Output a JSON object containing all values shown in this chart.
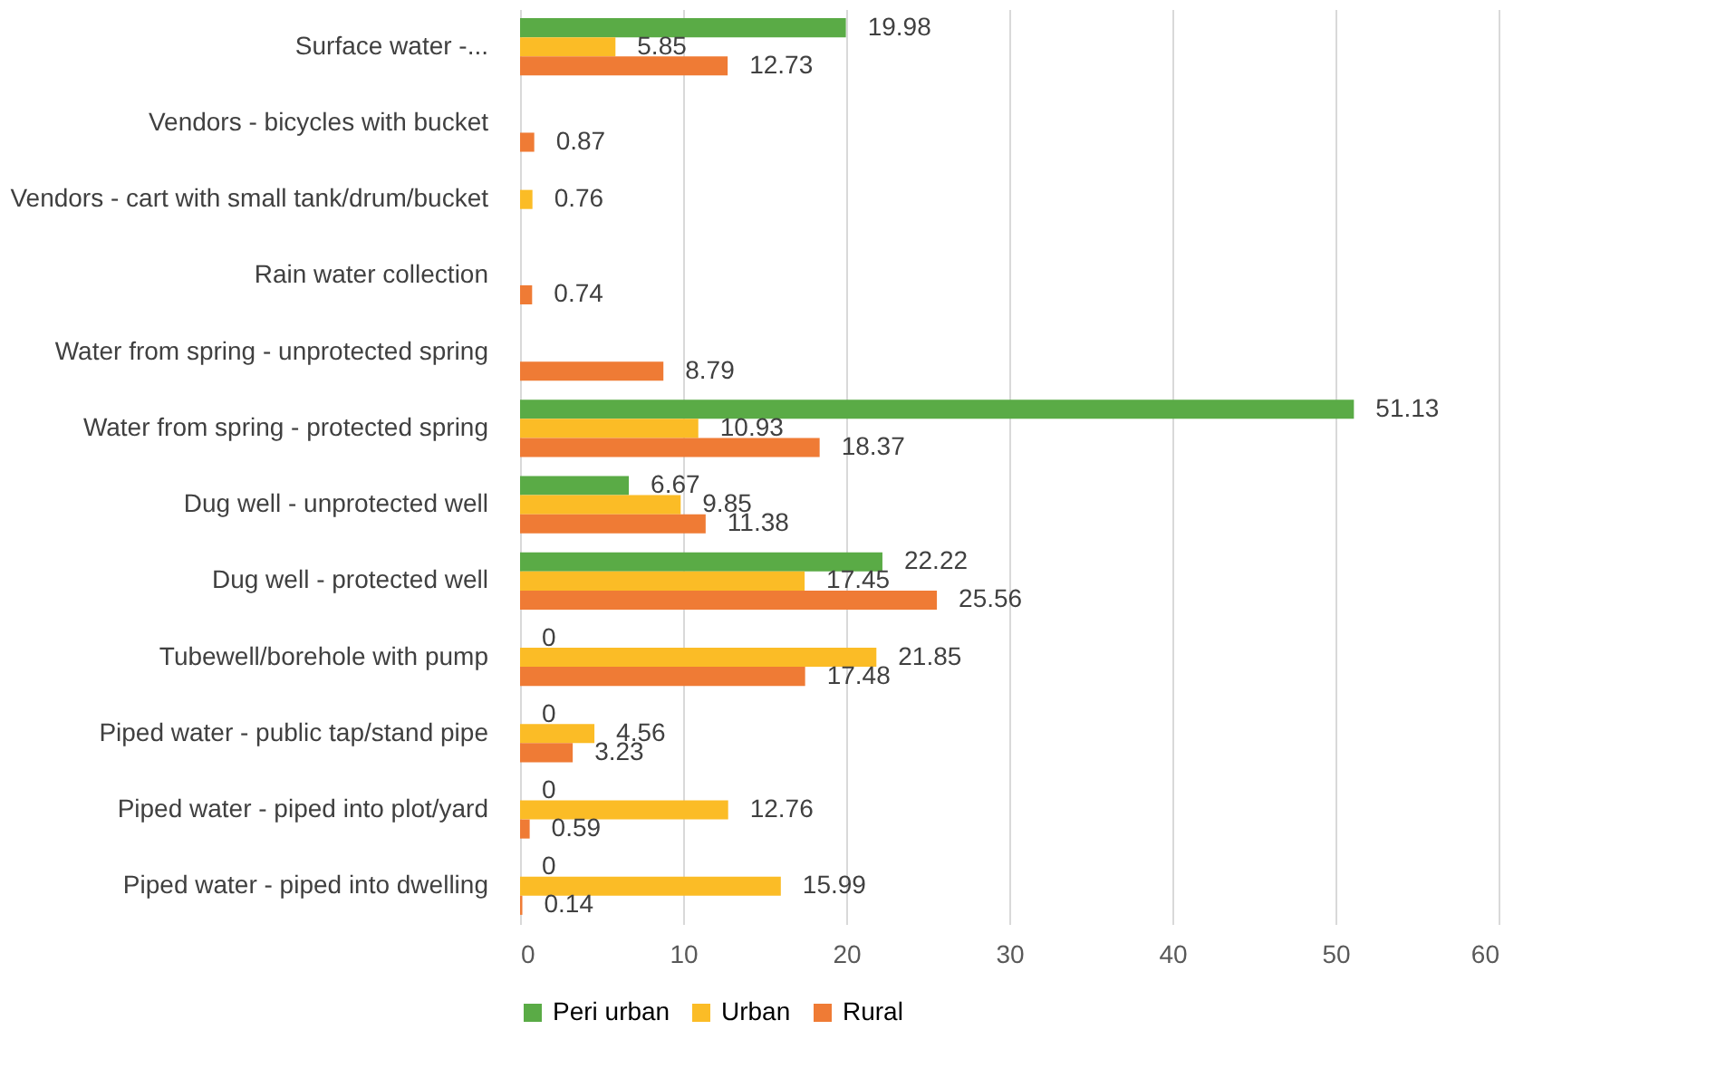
{
  "chart_data": {
    "type": "bar",
    "orientation": "horizontal",
    "categories": [
      "Surface water -...",
      "Vendors - bicycles with bucket",
      "Vendors - cart with small tank/drum/bucket",
      "Rain water collection",
      "Water from spring - unprotected spring",
      "Water from spring - protected spring ",
      "Dug well - unprotected well",
      "Dug well - protected well",
      "Tubewell/borehole with pump",
      "Piped  water - public tap/stand pipe",
      "Piped  water - piped into plot/yard",
      "Piped  water - piped into dwelling"
    ],
    "series": [
      {
        "name": "Peri urban",
        "color": "#5aab46",
        "values": [
          19.98,
          null,
          null,
          null,
          null,
          51.13,
          6.67,
          22.22,
          0,
          0,
          0,
          0
        ]
      },
      {
        "name": "Urban",
        "color": "#fbbc26",
        "values": [
          5.85,
          null,
          0.76,
          null,
          null,
          10.93,
          9.85,
          17.45,
          21.85,
          4.56,
          12.76,
          15.99
        ]
      },
      {
        "name": "Rural",
        "color": "#ef7b35",
        "values": [
          12.73,
          0.87,
          null,
          0.74,
          8.79,
          18.37,
          11.38,
          25.56,
          17.48,
          3.23,
          0.59,
          0.14
        ]
      }
    ],
    "xlim": [
      0,
      60
    ],
    "xticks": [
      0,
      10,
      20,
      30,
      40,
      50,
      60
    ],
    "grid": "x",
    "legend": "bottom",
    "data_labels": true
  }
}
